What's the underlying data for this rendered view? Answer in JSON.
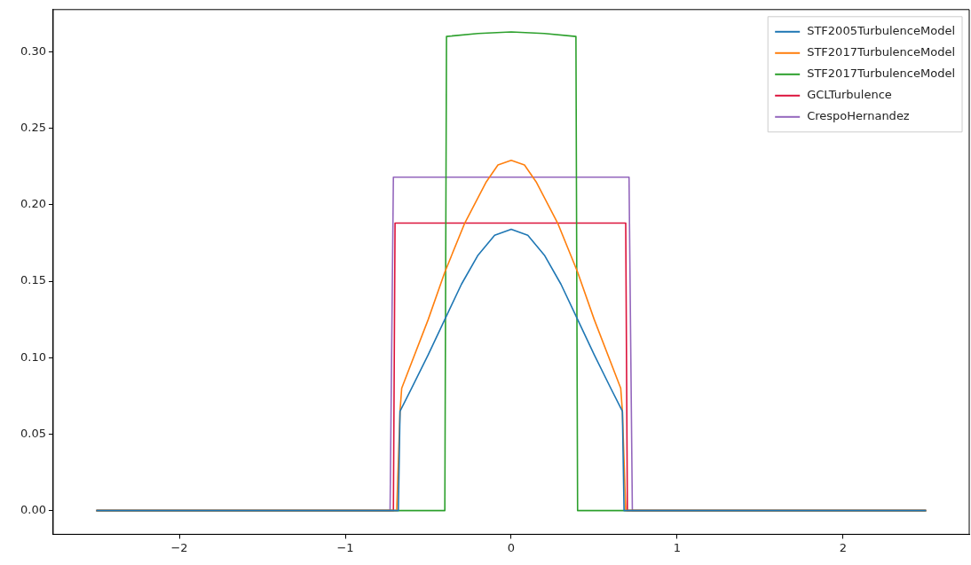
{
  "chart_data": {
    "type": "line",
    "xlim": [
      -2.76,
      2.76
    ],
    "ylim": [
      -0.0155,
      0.3276
    ],
    "xticks": [
      {
        "value": -2,
        "label": "−2"
      },
      {
        "value": -1,
        "label": "−1"
      },
      0,
      1,
      2
    ],
    "yticks": [
      {
        "value": 0,
        "label": "0.00"
      },
      {
        "value": 0.05,
        "label": "0.05"
      },
      {
        "value": 0.1,
        "label": "0.10"
      },
      {
        "value": 0.15,
        "label": "0.15"
      },
      {
        "value": 0.2,
        "label": "0.20"
      },
      {
        "value": 0.25,
        "label": "0.25"
      },
      {
        "value": 0.3,
        "label": "0.30"
      }
    ],
    "grid": false,
    "legend": "top right",
    "marker": "none",
    "line_style": "solid",
    "series": [
      {
        "name": "STF2005TurbulenceModel",
        "color": "#1f77b4",
        "x": [
          -2.5,
          -0.68,
          -0.67,
          -0.6,
          -0.5,
          -0.4,
          -0.3,
          -0.2,
          -0.1,
          0,
          0.1,
          0.2,
          0.3,
          0.4,
          0.5,
          0.6,
          0.67,
          0.68,
          2.5
        ],
        "values": [
          0,
          0,
          0.065,
          0.08,
          0.102,
          0.125,
          0.148,
          0.167,
          0.18,
          0.184,
          0.18,
          0.167,
          0.148,
          0.125,
          0.102,
          0.08,
          0.065,
          0,
          0
        ]
      },
      {
        "name": "STF2017TurbulenceModel",
        "color": "#ff7f0e",
        "x": [
          -2.5,
          -0.69,
          -0.67,
          -0.66,
          -0.5,
          -0.4,
          -0.28,
          -0.15,
          -0.08,
          0,
          0.08,
          0.15,
          0.28,
          0.4,
          0.5,
          0.66,
          0.67,
          0.69,
          2.5
        ],
        "values": [
          0,
          0,
          0.065,
          0.08,
          0.125,
          0.156,
          0.188,
          0.215,
          0.226,
          0.229,
          0.226,
          0.215,
          0.188,
          0.156,
          0.125,
          0.08,
          0.065,
          0,
          0
        ]
      },
      {
        "name": "STF2017TurbulenceModel",
        "color": "#2ca02c",
        "x": [
          -2.5,
          -0.4,
          -0.39,
          -0.2,
          0,
          0.2,
          0.39,
          0.4,
          2.5
        ],
        "values": [
          0,
          0,
          0.31,
          0.312,
          0.313,
          0.312,
          0.31,
          0,
          0
        ]
      },
      {
        "name": "GCLTurbulence",
        "color": "#dc143c",
        "x": [
          -2.5,
          -0.71,
          -0.7,
          0.69,
          0.7,
          2.5
        ],
        "values": [
          0,
          0,
          0.188,
          0.188,
          0,
          0
        ]
      },
      {
        "name": "CrespoHernandez",
        "color": "#9467bd",
        "x": [
          -2.5,
          -0.73,
          -0.71,
          0.71,
          0.73,
          2.5
        ],
        "values": [
          0,
          0,
          0.218,
          0.218,
          0,
          0
        ]
      }
    ]
  }
}
